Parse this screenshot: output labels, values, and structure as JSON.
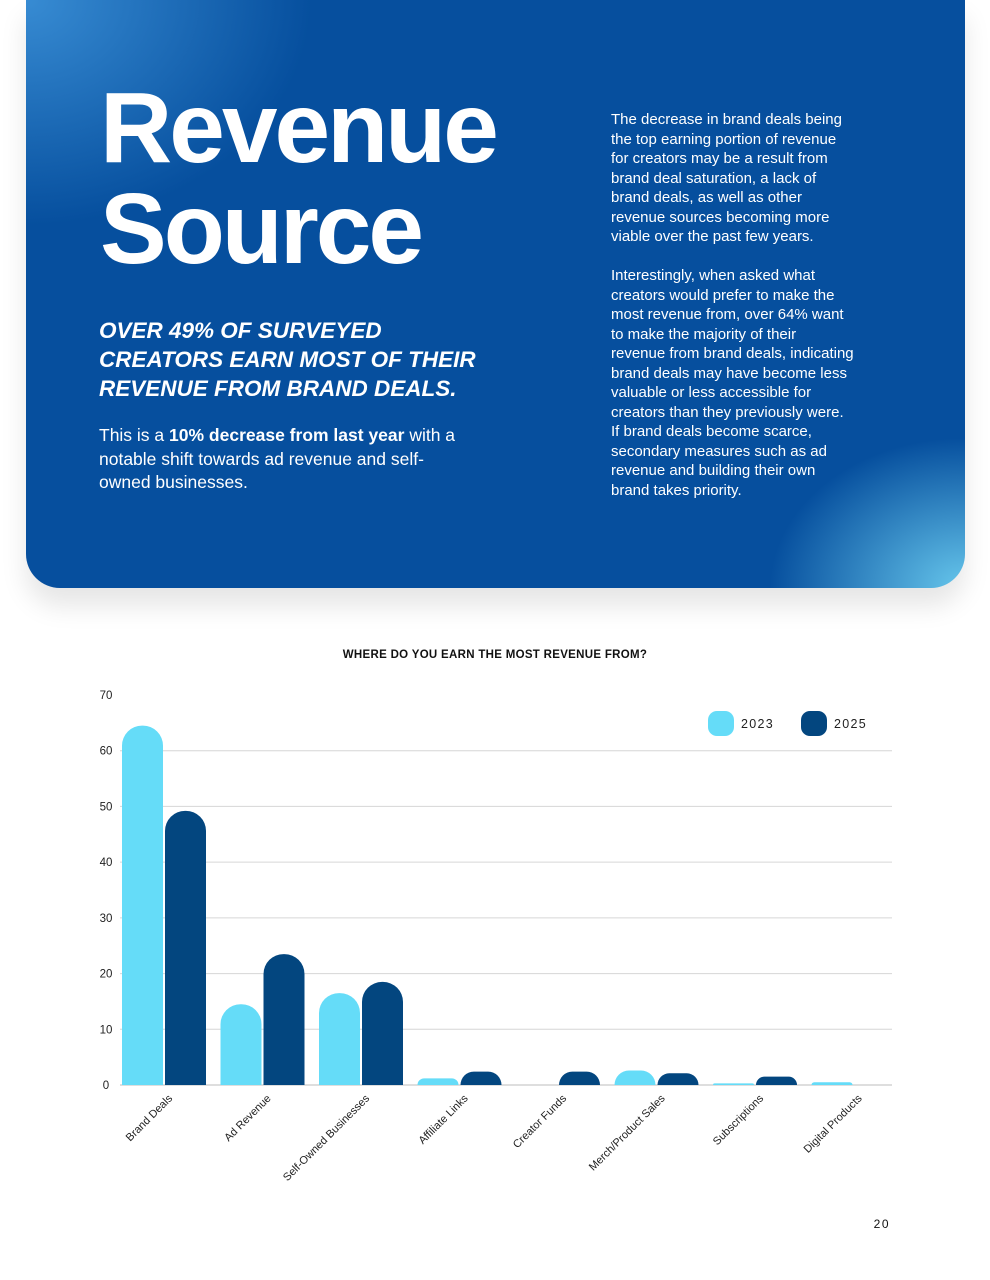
{
  "hero": {
    "title_lines": [
      "Revenue",
      "Source"
    ],
    "kicker_lines": [
      "OVER 49% OF SURVEYED",
      "CREATORS EARN MOST OF THEIR",
      "REVENUE FROM BRAND DEALS."
    ],
    "lead": {
      "prefix": "This is a ",
      "bold": "10% decrease from last year",
      "line1_rest": " with a",
      "line2": "notable shift towards ad revenue and self-",
      "line3": "owned businesses."
    },
    "paragraph1_lines": [
      "The decrease in brand deals being",
      "the top earning portion of revenue",
      "for creators may be a result from",
      "brand deal saturation, a lack of",
      "brand deals, as well as other",
      "revenue sources becoming more",
      "viable over the past few years."
    ],
    "paragraph2_lines": [
      "Interestingly, when asked what",
      "creators would prefer to make the",
      "most revenue from, over 64% want",
      "to make the majority of their",
      "revenue from brand deals, indicating",
      "brand deals may have become less",
      "valuable or less accessible for",
      "creators than they previously were.",
      "If brand deals become scarce,",
      "secondary measures such as ad",
      "revenue and building their own",
      "brand takes priority."
    ]
  },
  "chart_data": {
    "type": "bar",
    "title": "WHERE DO YOU EARN THE MOST REVENUE FROM?",
    "categories": [
      "Brand Deals",
      "Ad Revenue",
      "Self-Owned Businesses",
      "Affiliate Links",
      "Creator Funds",
      "Merch/Product Sales",
      "Subscriptions",
      "Digital Products"
    ],
    "series": [
      {
        "name": "2023",
        "color": "#65dcf8",
        "values": [
          64.5,
          14.5,
          16.5,
          1.2,
          0,
          2.6,
          0.3,
          0.5
        ]
      },
      {
        "name": "2025",
        "color": "#03467f",
        "values": [
          49.2,
          23.5,
          18.5,
          2.4,
          2.4,
          2.1,
          1.5,
          0
        ]
      }
    ],
    "ylim": [
      0,
      70
    ],
    "yticks": [
      0,
      10,
      20,
      30,
      40,
      50,
      60,
      70
    ],
    "grid": true,
    "legend": "top-right",
    "xlabel": "",
    "ylabel": ""
  },
  "page_number": "20"
}
